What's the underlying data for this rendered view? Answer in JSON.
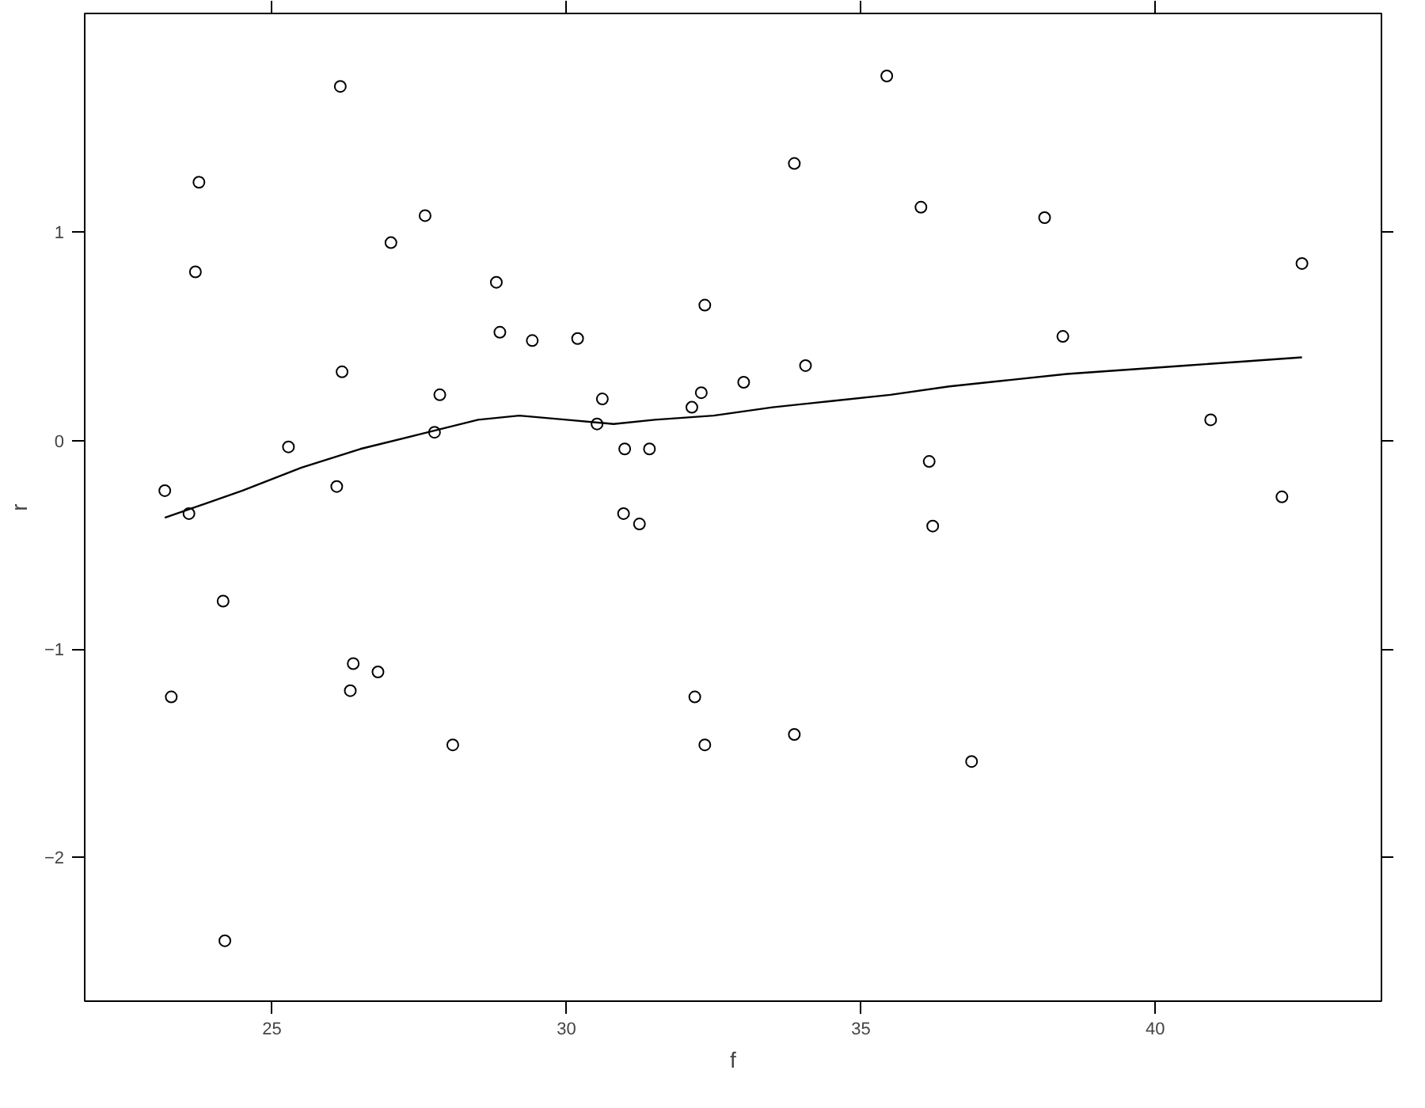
{
  "chart_data": {
    "type": "scatter",
    "xlabel": "f",
    "ylabel": "r",
    "xlim": [
      21.82,
      43.84
    ],
    "ylim": [
      -2.69,
      2.05
    ],
    "xticks": [
      25,
      30,
      35,
      40
    ],
    "yticks": [
      -2,
      -1,
      0,
      1
    ],
    "grid": false,
    "series": [
      {
        "color": "#000000",
        "marker": "circle",
        "x": [
          23.18,
          23.29,
          23.59,
          23.7,
          23.76,
          24.17,
          24.2,
          25.28,
          26.1,
          26.16,
          26.19,
          26.33,
          26.38,
          26.8,
          27.02,
          27.6,
          27.76,
          27.85,
          28.07,
          28.81,
          28.87,
          29.42,
          30.19,
          30.52,
          30.61,
          30.99,
          30.97,
          31.24,
          31.41,
          32.13,
          32.18,
          32.29,
          32.35,
          32.35,
          33.01,
          33.87,
          33.87,
          34.06,
          35.44,
          36.02,
          36.16,
          36.22,
          36.88,
          38.12,
          38.43,
          40.94,
          42.15,
          42.49
        ],
        "values": [
          -0.24,
          -1.23,
          -0.35,
          0.81,
          1.24,
          -0.77,
          -2.4,
          -0.03,
          -0.22,
          1.7,
          0.33,
          -1.2,
          -1.07,
          -1.11,
          0.95,
          1.08,
          0.04,
          0.22,
          -1.46,
          0.76,
          0.52,
          0.48,
          0.49,
          0.08,
          0.2,
          -0.04,
          -0.35,
          -0.4,
          -0.04,
          0.16,
          -1.23,
          0.23,
          0.65,
          -1.46,
          0.28,
          1.33,
          -1.41,
          0.36,
          1.75,
          1.12,
          -0.1,
          -0.41,
          -1.54,
          1.07,
          0.5,
          0.1,
          -0.27,
          0.85
        ]
      },
      {
        "type": "line",
        "color": "#000000",
        "marker": "none",
        "line_style": "solid",
        "x": [
          23.18,
          24.5,
          25.5,
          26.5,
          27.5,
          28.5,
          29.2,
          30.0,
          30.8,
          31.5,
          32.5,
          33.5,
          34.5,
          35.5,
          36.5,
          37.5,
          38.5,
          39.5,
          40.5,
          41.5,
          42.49
        ],
        "values": [
          -0.37,
          -0.24,
          -0.13,
          -0.04,
          0.03,
          0.1,
          0.12,
          0.1,
          0.08,
          0.1,
          0.12,
          0.16,
          0.19,
          0.22,
          0.26,
          0.29,
          0.32,
          0.34,
          0.36,
          0.38,
          0.4
        ]
      }
    ]
  }
}
